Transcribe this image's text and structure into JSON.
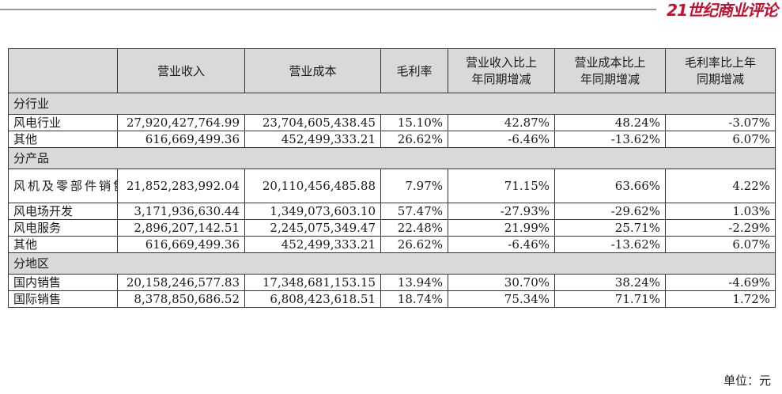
{
  "brand": "21世纪商业评论",
  "headers": [
    "",
    "营业收入",
    "营业成本",
    "毛利率",
    "营业收入比上年同期增减",
    "营业成本比上年同期增减",
    "毛利率比上年同期增减"
  ],
  "headers_lines": {
    "rev_change": [
      "营业收入比上",
      "年同期增减"
    ],
    "cost_change": [
      "营业成本比上",
      "年同期增减"
    ],
    "margin_change": [
      "毛利率比上年",
      "同期增减"
    ]
  },
  "sections": [
    {
      "title": "分行业",
      "rows": [
        {
          "name": "风电行业",
          "revenue": "27,920,427,764.99",
          "cost": "23,704,605,438.45",
          "margin": "15.10%",
          "rev_change": "42.87%",
          "cost_change": "48.24%",
          "margin_change": "-3.07%"
        },
        {
          "name": "其他",
          "revenue": "616,669,499.36",
          "cost": "452,499,333.21",
          "margin": "26.62%",
          "rev_change": "-6.46%",
          "cost_change": "-13.62%",
          "margin_change": "6.07%"
        }
      ]
    },
    {
      "title": "分产品",
      "rows": [
        {
          "name": "风机及零部件销售",
          "revenue": "21,852,283,992.04",
          "cost": "20,110,456,485.88",
          "margin": "7.97%",
          "rev_change": "71.15%",
          "cost_change": "63.66%",
          "margin_change": "4.22%"
        },
        {
          "name": "风电场开发",
          "revenue": "3,171,936,630.44",
          "cost": "1,349,073,603.10",
          "margin": "57.47%",
          "rev_change": "-27.93%",
          "cost_change": "-29.62%",
          "margin_change": "1.03%"
        },
        {
          "name": "风电服务",
          "revenue": "2,896,207,142.51",
          "cost": "2,245,075,349.47",
          "margin": "22.48%",
          "rev_change": "21.99%",
          "cost_change": "25.71%",
          "margin_change": "-2.29%"
        },
        {
          "name": "其他",
          "revenue": "616,669,499.36",
          "cost": "452,499,333.21",
          "margin": "26.62%",
          "rev_change": "-6.46%",
          "cost_change": "-13.62%",
          "margin_change": "6.07%"
        }
      ]
    },
    {
      "title": "分地区",
      "rows": [
        {
          "name": "国内销售",
          "revenue": "20,158,246,577.83",
          "cost": "17,348,681,153.15",
          "margin": "13.94%",
          "rev_change": "30.70%",
          "cost_change": "38.24%",
          "margin_change": "-4.69%"
        },
        {
          "name": "国际销售",
          "revenue": "8,378,850,686.52",
          "cost": "6,808,423,618.51",
          "margin": "18.74%",
          "rev_change": "75.34%",
          "cost_change": "71.71%",
          "margin_change": "1.72%"
        }
      ]
    }
  ],
  "unit_label": "单位：元"
}
